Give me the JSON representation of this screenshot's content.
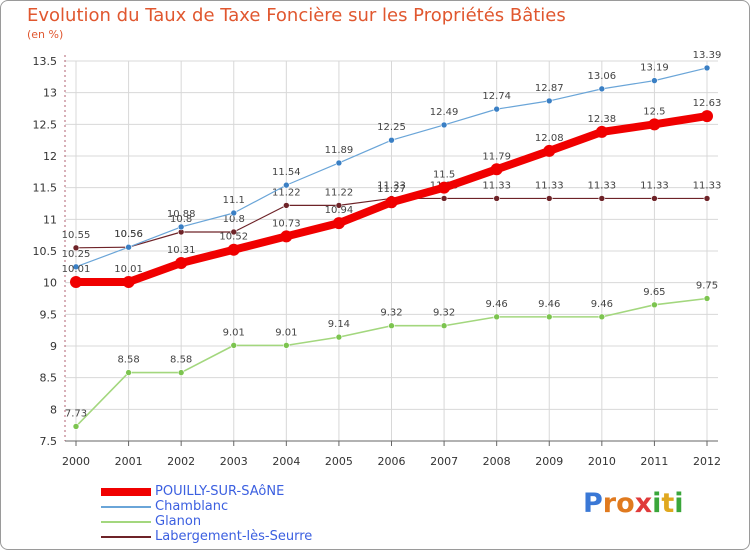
{
  "header": {
    "title": "Evolution du Taux de Taxe Foncière sur les Propriétés Bâties",
    "unit": "(en %)"
  },
  "colors": {
    "background": "#ffffff",
    "grid": "#d8d8d8",
    "axis": "#b06070",
    "title": "#e0572f",
    "legend_text": "#3b5fe0"
  },
  "logo": {
    "letters": [
      "P",
      "r",
      "o",
      "x",
      "i",
      "t",
      "i"
    ],
    "colors": [
      "#3a78d6",
      "#e07a1f",
      "#e07a1f",
      "#e03a3a",
      "#3aa63a",
      "#e0a81f",
      "#3aa63a"
    ]
  },
  "chart_data": {
    "type": "line",
    "title": "Evolution du Taux de Taxe Foncière sur les Propriétés Bâties",
    "ylabel": "(en %)",
    "xlabel": "",
    "x": [
      "2000",
      "2001",
      "2002",
      "2003",
      "2004",
      "2005",
      "2006",
      "2007",
      "2008",
      "2009",
      "2010",
      "2011",
      "2012"
    ],
    "ylim": [
      7.5,
      13.5
    ],
    "yticks": [
      "7.5",
      "8",
      "8.5",
      "9",
      "9.5",
      "10",
      "10.5",
      "11",
      "11.5",
      "12",
      "12.5",
      "13",
      "13.5"
    ],
    "grid": true,
    "legend_position": "bottom-left",
    "series": [
      {
        "name": "Labergement-lès-Seurre",
        "color": "#6e2328",
        "width": 1.2,
        "values": [
          10.55,
          10.56,
          10.8,
          10.8,
          11.22,
          11.22,
          11.33,
          11.33,
          11.33,
          11.33,
          11.33,
          11.33,
          11.33
        ],
        "labels": [
          "10.55",
          "10.56",
          "10.8",
          "10.8",
          "11.22",
          "11.22",
          "11.33",
          "11.33",
          "11.33",
          "11.33",
          "11.33",
          "11.33",
          "11.33"
        ]
      },
      {
        "name": "Chamblanc",
        "color": "#6aa5d8",
        "dot": "#3a7fc4",
        "width": 1.2,
        "values": [
          10.25,
          10.56,
          10.88,
          11.1,
          11.54,
          11.89,
          12.25,
          12.49,
          12.74,
          12.87,
          13.06,
          13.19,
          13.39
        ],
        "labels": [
          "10.25",
          "10.56",
          "10.88",
          "11.1",
          "11.54",
          "11.89",
          "12.25",
          "12.49",
          "12.74",
          "12.87",
          "13.06",
          "13.19",
          "13.39"
        ]
      },
      {
        "name": "Glanon",
        "color": "#a3d77e",
        "dot": "#7cc44f",
        "width": 1.6,
        "values": [
          7.73,
          8.58,
          8.58,
          9.01,
          9.01,
          9.14,
          9.32,
          9.32,
          9.46,
          9.46,
          9.46,
          9.65,
          9.75
        ],
        "labels": [
          "7.73",
          "8.58",
          "8.58",
          "9.01",
          "9.01",
          "9.14",
          "9.32",
          "9.32",
          "9.46",
          "9.46",
          "9.46",
          "9.65",
          "9.75"
        ]
      },
      {
        "name": "POUILLY-SUR-SAôNE",
        "color": "#f00000",
        "width": 8,
        "values": [
          10.01,
          10.01,
          10.31,
          10.52,
          10.73,
          10.94,
          11.27,
          11.5,
          11.79,
          12.08,
          12.38,
          12.5,
          12.63
        ],
        "labels": [
          "10.01",
          "10.01",
          "10.31",
          "10.52",
          "10.73",
          "10.94",
          "11.27",
          "11.5",
          "11.79",
          "12.08",
          "12.38",
          "12.5",
          "12.63"
        ]
      }
    ],
    "legend": [
      "POUILLY-SUR-SAôNE",
      "Chamblanc",
      "Glanon",
      "Labergement-lès-Seurre"
    ]
  }
}
